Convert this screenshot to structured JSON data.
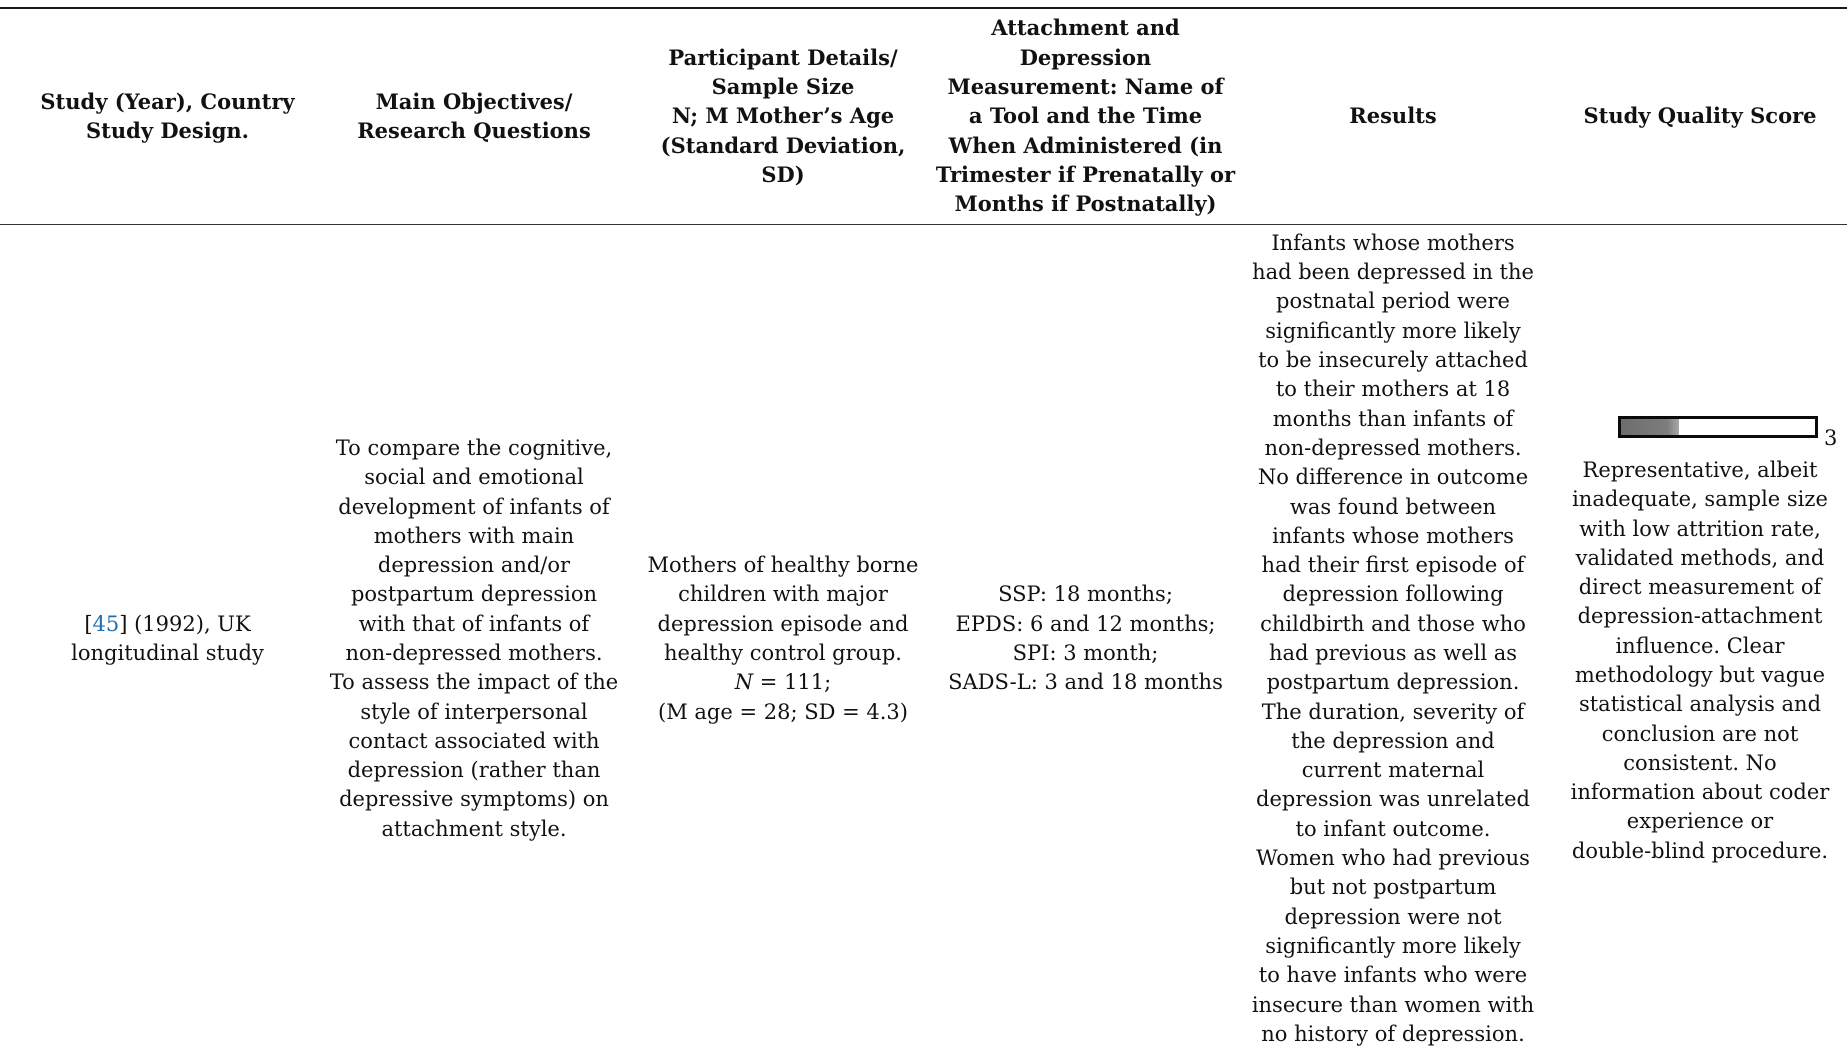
{
  "table": {
    "headers": [
      [
        "Study (Year), Country",
        "Study Design."
      ],
      [
        "Main Objectives/",
        "Research Questions"
      ],
      [
        "Participant Details/",
        "Sample Size",
        "N; M Mother’s Age",
        "(Standard Deviation,",
        "SD)"
      ],
      [
        "Attachment and",
        "Depression",
        "Measurement: Name of",
        "a Tool and the Time",
        "When Administered (in",
        "Trimester if Prenatally or",
        "Months if Postnatally)"
      ],
      [
        "Results"
      ],
      [
        "Study Quality Score"
      ]
    ],
    "row": {
      "study": {
        "ref": "45",
        "ref_open": "[",
        "ref_close": "] (1992), UK",
        "design": "longitudinal study"
      },
      "objectives": [
        "To compare the cognitive,",
        "social and emotional",
        "development of infants of",
        "mothers with main",
        "depression and/or",
        "postpartum depression",
        "with that of infants of",
        "non-depressed mothers.",
        "To assess the impact of the",
        "style of interpersonal",
        "contact associated with",
        "depression (rather than",
        "depressive symptoms) on",
        "attachment style."
      ],
      "participants": {
        "lines": [
          "Mothers of healthy borne",
          "children with major",
          "depression episode and",
          "healthy control group."
        ],
        "n_label": "N",
        "n_value": " = 111;",
        "age_line": "(M age = 28; SD = 4.3)"
      },
      "measurement": [
        "SSP: 18 months;",
        "EPDS: 6 and 12 months;",
        "SPI: 3 month;",
        "SADS-L: 3 and 18 months"
      ],
      "results": [
        "Infants whose mothers",
        "had been depressed in the",
        "postnatal period were",
        "significantly more likely",
        "to be insecurely attached",
        "to their mothers at 18",
        "months than infants of",
        "non-depressed mothers.",
        "No difference in outcome",
        "was found between",
        "infants whose mothers",
        "had their first episode of",
        "depression following",
        "childbirth and those who",
        "had previous as well as",
        "postpartum depression.",
        "The duration, severity of",
        "the depression and",
        "current maternal",
        "depression was unrelated",
        "to infant outcome.",
        "Women who had previous",
        "but not postpartum",
        "depression were not",
        "significantly more likely",
        "to have infants who were",
        "insecure than women with",
        "no history of depression."
      ],
      "quality": {
        "score": "3",
        "bar_fill_fraction": 0.3,
        "bar_fill_color": "#777777",
        "lines": [
          "Representative, albeit",
          "inadequate, sample size",
          "with low attrition rate,",
          "validated methods, and",
          "direct measurement of",
          "depression-attachment",
          "influence. Clear",
          "methodology but vague",
          "statistical analysis and",
          "conclusion are not",
          "consistent. No",
          "information about coder",
          "experience or",
          "double-blind procedure."
        ]
      }
    },
    "colors": {
      "link": "#1f6fb5",
      "rule": "#1a1a1a"
    }
  }
}
